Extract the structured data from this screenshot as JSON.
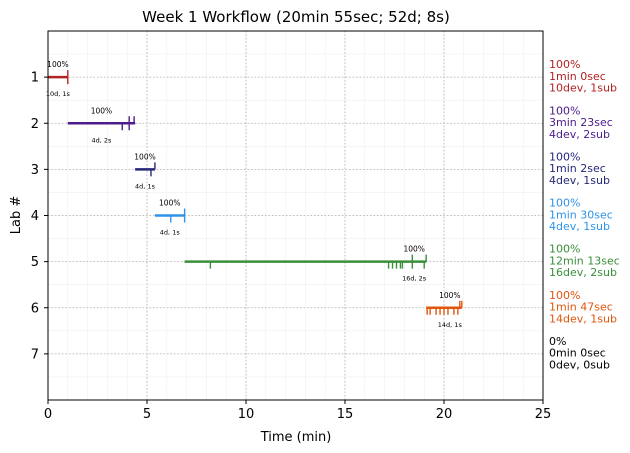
{
  "chart_data": {
    "type": "timeline",
    "title": "Week 1 Workflow (20min 55sec; 52d; 8s)",
    "xlabel": "Time (min)",
    "ylabel": "Lab #",
    "xlim": [
      0,
      25
    ],
    "ylim": [
      8,
      0
    ],
    "xticks": [
      0,
      5,
      10,
      15,
      20,
      25
    ],
    "yticks": [
      1,
      2,
      3,
      4,
      5,
      6,
      7
    ],
    "grid": true,
    "labs": [
      {
        "lab": 1,
        "color": "#b22222",
        "start": 0.0,
        "end": 1.0,
        "dev_ticks": [
          1.0
        ],
        "sub_ticks": [
          1.0
        ],
        "pct_label": "100%",
        "count_label": "10d, 1s",
        "summary": [
          "100%",
          "1min 0sec",
          "10dev, 1sub"
        ]
      },
      {
        "lab": 2,
        "color": "#4b1c8c",
        "start": 1.0,
        "end": 4.4,
        "dev_ticks": [
          3.75,
          4.1
        ],
        "sub_ticks": [
          4.1,
          4.35
        ],
        "pct_label": "100%",
        "count_label": "4d, 2s",
        "summary": [
          "100%",
          "3min 23sec",
          "4dev, 2sub"
        ]
      },
      {
        "lab": 3,
        "color": "#272779",
        "start": 4.4,
        "end": 5.4,
        "dev_ticks": [
          5.2
        ],
        "sub_ticks": [
          5.4
        ],
        "pct_label": "100%",
        "count_label": "4d, 1s",
        "summary": [
          "100%",
          "1min 2sec",
          "4dev, 1sub"
        ]
      },
      {
        "lab": 4,
        "color": "#2e93e8",
        "start": 5.4,
        "end": 6.9,
        "dev_ticks": [
          6.2,
          6.9
        ],
        "sub_ticks": [
          6.9
        ],
        "pct_label": "100%",
        "count_label": "4d, 1s",
        "summary": [
          "100%",
          "1min 30sec",
          "4dev, 1sub"
        ]
      },
      {
        "lab": 5,
        "color": "#3a8f3a",
        "start": 6.9,
        "end": 19.1,
        "dev_ticks": [
          8.2,
          17.2,
          17.4,
          17.6,
          17.8,
          17.9,
          18.4,
          19.0
        ],
        "sub_ticks": [
          18.4,
          19.1
        ],
        "pct_label": "100%",
        "count_label": "16d, 2s",
        "summary": [
          "100%",
          "12min 13sec",
          "16dev, 2sub"
        ]
      },
      {
        "lab": 6,
        "color": "#e0560c",
        "start": 19.1,
        "end": 20.9,
        "dev_ticks": [
          19.15,
          19.3,
          19.6,
          19.8,
          20.0,
          20.2,
          20.5,
          20.7
        ],
        "sub_ticks": [
          20.8,
          20.9
        ],
        "pct_label": "100%",
        "count_label": "14d, 1s",
        "summary": [
          "100%",
          "1min 47sec",
          "14dev, 1sub"
        ]
      },
      {
        "lab": 7,
        "color": "#000000",
        "start": null,
        "end": null,
        "dev_ticks": [],
        "sub_ticks": [],
        "pct_label": "",
        "count_label": "",
        "summary": [
          "0%",
          "0min 0sec",
          "0dev, 0sub"
        ]
      }
    ]
  }
}
